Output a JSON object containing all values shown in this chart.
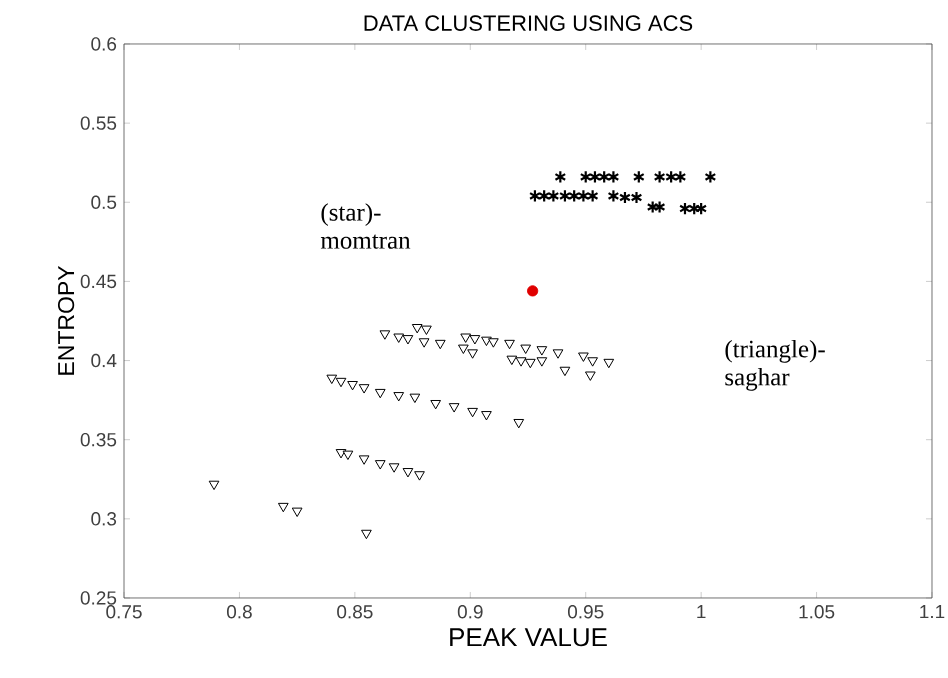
{
  "chart_data": {
    "type": "scatter",
    "title": "DATA CLUSTERING USING ACS",
    "xlabel": "PEAK VALUE",
    "ylabel": "ENTROPY",
    "xlim": [
      0.75,
      1.1
    ],
    "ylim": [
      0.25,
      0.6
    ],
    "xticks": [
      0.75,
      0.8,
      0.85,
      0.9,
      0.95,
      1,
      1.05,
      1.1
    ],
    "yticks": [
      0.25,
      0.3,
      0.35,
      0.4,
      0.45,
      0.5,
      0.55,
      0.6
    ],
    "grid": false,
    "annotations": [
      "(star)-momtran",
      "(triangle)-saghar"
    ],
    "series": [
      {
        "color": "#000000",
        "marker": "cross",
        "x": [
          0.939,
          0.95,
          0.954,
          0.958,
          0.962,
          0.973,
          0.982,
          0.987,
          0.991,
          1.004,
          0.928,
          0.932,
          0.936,
          0.941,
          0.945,
          0.949,
          0.953,
          0.962,
          0.967,
          0.972,
          0.979,
          0.982,
          0.993,
          0.997,
          1.0
        ],
        "values": [
          0.516,
          0.516,
          0.516,
          0.516,
          0.516,
          0.516,
          0.516,
          0.516,
          0.516,
          0.516,
          0.504,
          0.504,
          0.504,
          0.504,
          0.504,
          0.504,
          0.504,
          0.504,
          0.503,
          0.503,
          0.497,
          0.497,
          0.496,
          0.496,
          0.496
        ]
      },
      {
        "color": "#000000",
        "marker": "triangle",
        "x": [
          0.863,
          0.869,
          0.873,
          0.877,
          0.881,
          0.88,
          0.887,
          0.898,
          0.902,
          0.907,
          0.897,
          0.901,
          0.91,
          0.917,
          0.924,
          0.931,
          0.938,
          0.918,
          0.922,
          0.926,
          0.931,
          0.941,
          0.949,
          0.953,
          0.96,
          0.952,
          0.84,
          0.844,
          0.849,
          0.854,
          0.861,
          0.869,
          0.876,
          0.885,
          0.893,
          0.901,
          0.907,
          0.921,
          0.844,
          0.847,
          0.854,
          0.861,
          0.867,
          0.873,
          0.878,
          0.789,
          0.819,
          0.825,
          0.855
        ],
        "values": [
          0.417,
          0.415,
          0.414,
          0.421,
          0.42,
          0.412,
          0.411,
          0.415,
          0.414,
          0.413,
          0.408,
          0.405,
          0.412,
          0.411,
          0.408,
          0.407,
          0.405,
          0.401,
          0.4,
          0.399,
          0.4,
          0.394,
          0.403,
          0.4,
          0.399,
          0.391,
          0.389,
          0.387,
          0.385,
          0.383,
          0.38,
          0.378,
          0.377,
          0.373,
          0.371,
          0.368,
          0.366,
          0.361,
          0.342,
          0.341,
          0.338,
          0.335,
          0.333,
          0.33,
          0.328,
          0.322,
          0.308,
          0.305,
          0.291
        ]
      },
      {
        "color": "#e00000",
        "marker": "circle",
        "x": [
          0.927
        ],
        "values": [
          0.444
        ]
      }
    ]
  }
}
